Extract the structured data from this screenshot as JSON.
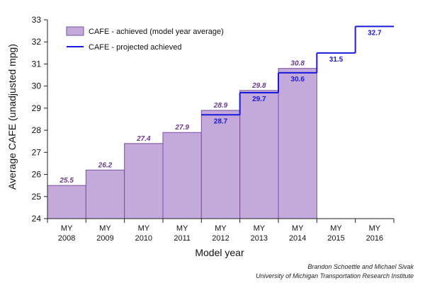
{
  "chart_data": {
    "type": "bar",
    "ylabel": "Average CAFE (unadjusted mpg)",
    "xlabel": "Model year",
    "ylim": [
      24,
      33
    ],
    "yticks": [
      24,
      25,
      26,
      27,
      28,
      29,
      30,
      31,
      32,
      33
    ],
    "grid": false,
    "legend_position": "top-left",
    "categories": [
      [
        "MY",
        "2008"
      ],
      [
        "MY",
        "2009"
      ],
      [
        "MY",
        "2010"
      ],
      [
        "MY",
        "2011"
      ],
      [
        "MY",
        "2012"
      ],
      [
        "MY",
        "2013"
      ],
      [
        "MY",
        "2014"
      ],
      [
        "MY",
        "2015"
      ],
      [
        "MY",
        "2016"
      ]
    ],
    "series": [
      {
        "name": "CAFE - achieved (model year average)",
        "type": "bar",
        "values": [
          25.5,
          26.2,
          27.4,
          27.9,
          28.9,
          29.8,
          30.8,
          null,
          null
        ],
        "labels": [
          "25.5",
          "26.2",
          "27.4",
          "27.9",
          "28.9",
          "29.8",
          "30.8",
          "",
          ""
        ]
      },
      {
        "name": "CAFE - projected achieved",
        "type": "step",
        "values": [
          null,
          null,
          null,
          null,
          28.7,
          29.7,
          30.6,
          31.5,
          32.7
        ],
        "labels": [
          "",
          "",
          "",
          "",
          "28.7",
          "29.7",
          "30.6",
          "31.5",
          "32.7"
        ]
      }
    ]
  },
  "colors": {
    "achieved_fill": "#c4a9db",
    "achieved_edge": "#7a4fa0",
    "achieved_label": "#6a3a8c",
    "projected": "#1a1adf",
    "axis": "#222222"
  },
  "credits": {
    "line1": "Brandon Schoettle and Michael Sivak",
    "line2": "University of Michigan Transportation Research Institute"
  }
}
